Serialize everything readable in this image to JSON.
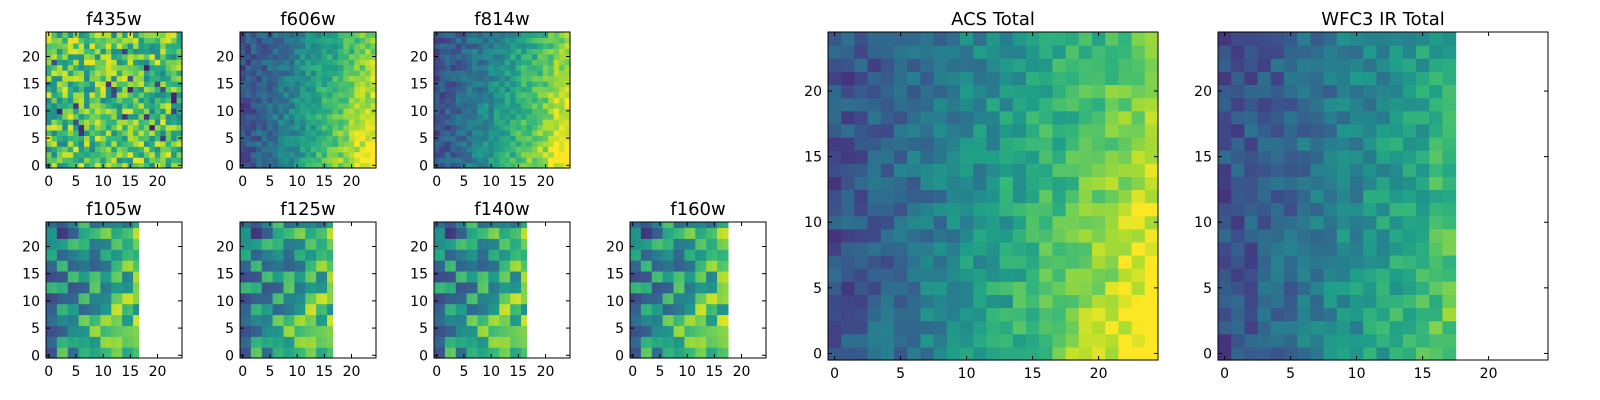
{
  "figure": {
    "colormap": "viridis",
    "missing_color": "#ffffff"
  },
  "chart_data": [
    {
      "type": "heatmap",
      "title": "f435w",
      "grid": [
        25,
        25
      ],
      "xlim": [
        0,
        24
      ],
      "ylim": [
        0,
        24
      ],
      "xticks": [
        0,
        5,
        10,
        15,
        20
      ],
      "yticks": [
        0,
        5,
        10,
        15,
        20
      ],
      "covered_max_x": 24,
      "pattern": "noisy-high",
      "value_range": [
        0,
        1
      ]
    },
    {
      "type": "heatmap",
      "title": "f606w",
      "grid": [
        25,
        25
      ],
      "xlim": [
        0,
        24
      ],
      "ylim": [
        0,
        24
      ],
      "xticks": [
        0,
        5,
        10,
        15,
        20
      ],
      "yticks": [
        0,
        5,
        10,
        15,
        20
      ],
      "covered_max_x": 24,
      "pattern": "gradient-bottom-right",
      "value_range": [
        0,
        1
      ]
    },
    {
      "type": "heatmap",
      "title": "f814w",
      "grid": [
        25,
        25
      ],
      "xlim": [
        0,
        24
      ],
      "ylim": [
        0,
        24
      ],
      "xticks": [
        0,
        5,
        10,
        15,
        20
      ],
      "yticks": [
        0,
        5,
        10,
        15,
        20
      ],
      "covered_max_x": 24,
      "pattern": "gradient-bottom-right",
      "value_range": [
        0,
        1
      ]
    },
    {
      "type": "heatmap",
      "title": "f105w",
      "grid": [
        25,
        25
      ],
      "xlim": [
        0,
        24
      ],
      "ylim": [
        0,
        24
      ],
      "xticks": [
        0,
        5,
        10,
        15,
        20
      ],
      "yticks": [
        0,
        5,
        10,
        15,
        20
      ],
      "covered_max_x": 16,
      "pattern": "blocky",
      "value_range": [
        0,
        1
      ]
    },
    {
      "type": "heatmap",
      "title": "f125w",
      "grid": [
        25,
        25
      ],
      "xlim": [
        0,
        24
      ],
      "ylim": [
        0,
        24
      ],
      "xticks": [
        0,
        5,
        10,
        15,
        20
      ],
      "yticks": [
        0,
        5,
        10,
        15,
        20
      ],
      "covered_max_x": 16,
      "pattern": "blocky",
      "value_range": [
        0,
        1
      ]
    },
    {
      "type": "heatmap",
      "title": "f140w",
      "grid": [
        25,
        25
      ],
      "xlim": [
        0,
        24
      ],
      "ylim": [
        0,
        24
      ],
      "xticks": [
        0,
        5,
        10,
        15,
        20
      ],
      "yticks": [
        0,
        5,
        10,
        15,
        20
      ],
      "covered_max_x": 16,
      "pattern": "blocky",
      "value_range": [
        0,
        1
      ]
    },
    {
      "type": "heatmap",
      "title": "f160w",
      "grid": [
        25,
        25
      ],
      "xlim": [
        0,
        24
      ],
      "ylim": [
        0,
        24
      ],
      "xticks": [
        0,
        5,
        10,
        15,
        20
      ],
      "yticks": [
        0,
        5,
        10,
        15,
        20
      ],
      "covered_max_x": 17,
      "pattern": "blocky",
      "value_range": [
        0,
        1
      ]
    },
    {
      "type": "heatmap",
      "title": "ACS Total",
      "grid": [
        25,
        25
      ],
      "xlim": [
        0,
        24
      ],
      "ylim": [
        0,
        24
      ],
      "xticks": [
        0,
        5,
        10,
        15,
        20
      ],
      "yticks": [
        0,
        5,
        10,
        15,
        20
      ],
      "covered_max_x": 24,
      "pattern": "gradient-bottom-right",
      "value_range": [
        0,
        1
      ]
    },
    {
      "type": "heatmap",
      "title": "WFC3 IR Total",
      "grid": [
        25,
        25
      ],
      "xlim": [
        0,
        24
      ],
      "ylim": [
        0,
        24
      ],
      "xticks": [
        0,
        5,
        10,
        15,
        20
      ],
      "yticks": [
        0,
        5,
        10,
        15,
        20
      ],
      "covered_max_x": 17,
      "pattern": "gradient-bottom-right",
      "value_range": [
        0,
        1
      ]
    }
  ]
}
